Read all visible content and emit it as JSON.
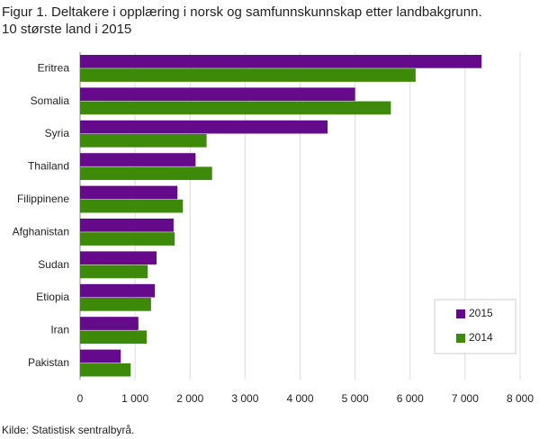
{
  "chart_data": {
    "type": "hbar",
    "title": "Figur 1. Deltakere i opplæring i norsk og samfunnskunnskap etter landbakgrunn.",
    "subtitle": "10 største land i 2015",
    "source": "Kilde: Statistisk sentralbyrå.",
    "categories": [
      "Eritrea",
      "Somalia",
      "Syria",
      "Thailand",
      "Filippinene",
      "Afghanistan",
      "Sudan",
      "Etiopia",
      "Iran",
      "Pakistan"
    ],
    "series": [
      {
        "name": "2015",
        "color": "#660a8c",
        "values": [
          7300,
          5000,
          4500,
          2100,
          1770,
          1700,
          1390,
          1360,
          1060,
          740
        ]
      },
      {
        "name": "2014",
        "color": "#3d8a0a",
        "values": [
          6100,
          5650,
          2300,
          2400,
          1870,
          1720,
          1230,
          1290,
          1210,
          920
        ]
      }
    ],
    "xlim": [
      0,
      8000
    ],
    "xticks": [
      0,
      {
        "value": 1000,
        "label": "1 000"
      },
      {
        "value": 2000,
        "label": "2 000"
      },
      {
        "value": 3000,
        "label": "3 000"
      },
      {
        "value": 4000,
        "label": "4 000"
      },
      {
        "value": 5000,
        "label": "5 000"
      },
      {
        "value": 6000,
        "label": "6 000"
      },
      {
        "value": 7000,
        "label": "7 000"
      },
      {
        "value": 8000,
        "label": "8 000"
      }
    ],
    "grid": true,
    "legend": "lower-right"
  }
}
